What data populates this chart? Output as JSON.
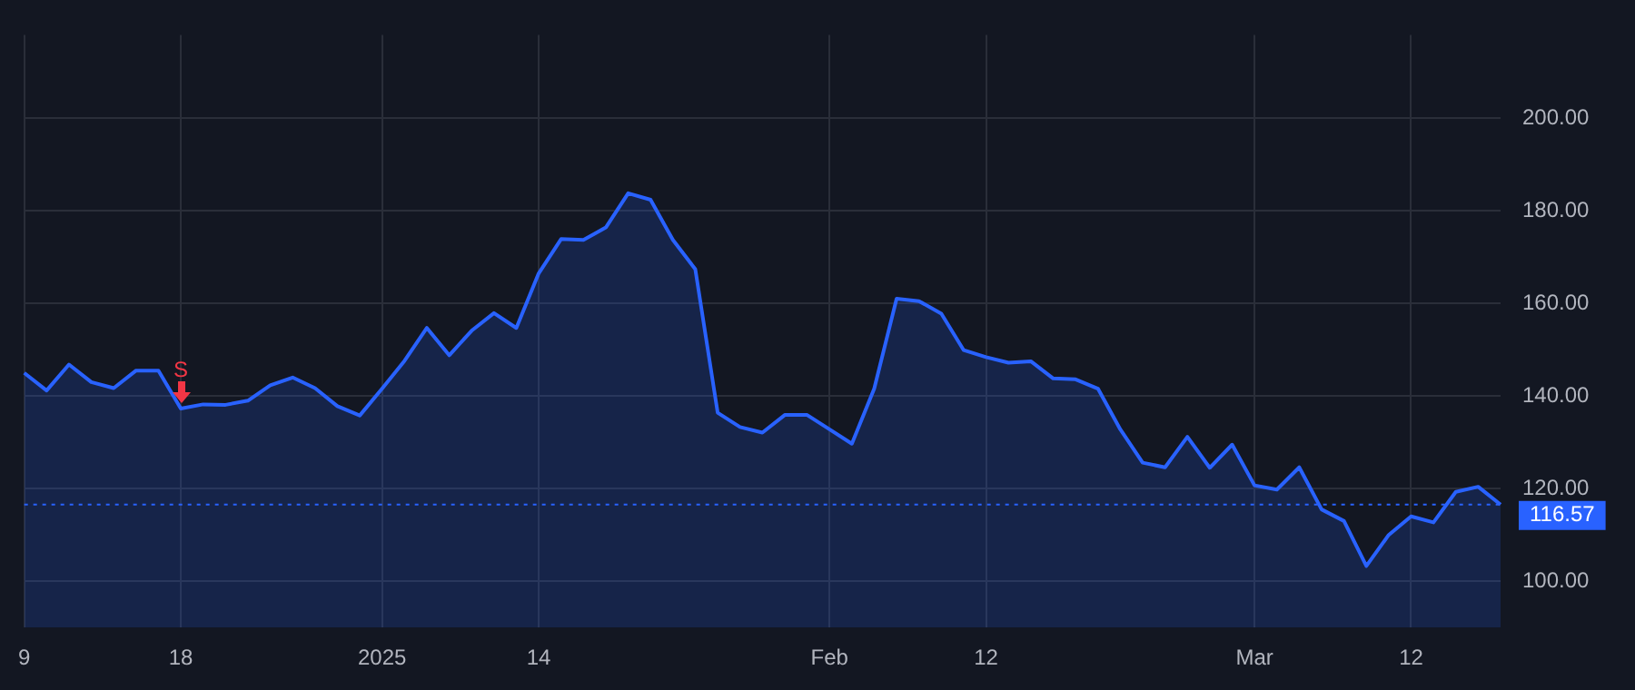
{
  "chart_data": {
    "type": "area",
    "categories": [
      "9",
      null,
      null,
      null,
      null,
      null,
      null,
      "18",
      null,
      null,
      null,
      null,
      null,
      null,
      null,
      null,
      "2025",
      null,
      null,
      null,
      null,
      null,
      null,
      "14",
      null,
      null,
      null,
      null,
      null,
      null,
      null,
      null,
      null,
      null,
      null,
      null,
      "Feb",
      null,
      null,
      null,
      null,
      null,
      null,
      "12",
      null,
      null,
      null,
      null,
      null,
      null,
      null,
      null,
      null,
      null,
      null,
      "Mar",
      null,
      null,
      null,
      null,
      null,
      null,
      "12",
      null,
      null,
      null,
      null
    ],
    "series": [
      {
        "color": "#2962ff",
        "values": [
          145.0,
          141.2,
          146.8,
          143.0,
          141.7,
          145.5,
          145.5,
          137.3,
          138.2,
          138.1,
          139.0,
          142.3,
          144.0,
          141.7,
          137.8,
          135.8,
          141.6,
          147.6,
          154.7,
          148.8,
          154.1,
          157.9,
          154.7,
          166.5,
          173.9,
          173.7,
          176.4,
          183.8,
          182.4,
          173.7,
          167.4,
          136.4,
          133.3,
          132.1,
          135.9,
          135.9,
          132.8,
          129.7,
          141.6,
          161.0,
          160.5,
          157.8,
          149.9,
          148.4,
          147.2,
          147.5,
          143.8,
          143.6,
          141.6,
          132.8,
          125.6,
          124.6,
          131.2,
          124.5,
          129.5,
          120.7,
          119.8,
          124.6,
          115.5,
          113.0,
          103.3,
          110.0,
          114.0,
          112.7,
          119.3,
          120.4,
          116.57
        ]
      }
    ],
    "ylim": [
      90,
      218
    ],
    "yticks": [
      {
        "value": 100,
        "label": "100.00"
      },
      {
        "value": 120,
        "label": "120.00"
      },
      {
        "value": 140,
        "label": "140.00"
      },
      {
        "value": 160,
        "label": "160.00"
      },
      {
        "value": 180,
        "label": "180.00"
      },
      {
        "value": 200,
        "label": "200.00"
      }
    ],
    "grid": true,
    "legend": false,
    "marker": "none",
    "line_style": "solid",
    "ref_lines": [
      {
        "axis": "y",
        "value": 116.57,
        "label": "116.57",
        "color": "#2962ff",
        "line_style": "dotted"
      }
    ],
    "annotations": [
      {
        "text": "S",
        "x": "18",
        "y": 137.3
      }
    ]
  }
}
